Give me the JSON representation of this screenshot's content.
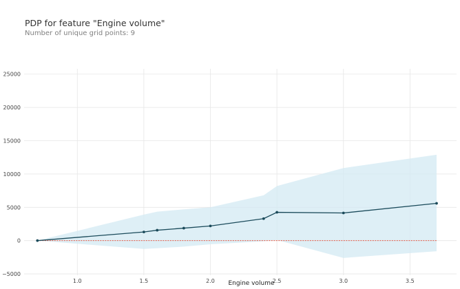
{
  "title": "PDP for feature \"Engine volume\"",
  "subtitle": "Number of unique grid points: 9",
  "colors": {
    "line": "#1a4a5a",
    "band": "#d3eaf3",
    "zero_line": "#e8432a",
    "grid": "#e6e6e6"
  },
  "chart_data": {
    "type": "line",
    "title": "PDP for feature \"Engine volume\"",
    "xlabel": "Engine volume",
    "ylabel": "",
    "xlim": [
      0.6,
      3.85
    ],
    "ylim": [
      -5200,
      25800
    ],
    "xticks": [
      1.0,
      1.5,
      2.0,
      2.5,
      3.0,
      3.5
    ],
    "xtick_labels": [
      "1.0",
      "1.5",
      "2.0",
      "2.5",
      "3.0",
      "3.5"
    ],
    "yticks": [
      -5000,
      0,
      5000,
      10000,
      15000,
      20000,
      25000
    ],
    "ytick_labels": [
      "−5000",
      "0",
      "5000",
      "10000",
      "15000",
      "20000",
      "25000"
    ],
    "x": [
      0.7,
      1.5,
      1.6,
      1.8,
      2.0,
      2.4,
      2.5,
      3.0,
      3.7
    ],
    "pdp": [
      0,
      1300,
      1560,
      1870,
      2200,
      3300,
      4250,
      4150,
      5600
    ],
    "upper": [
      0,
      3900,
      4350,
      4700,
      5000,
      6800,
      8200,
      10900,
      12900
    ],
    "lower": [
      0,
      -1250,
      -1150,
      -900,
      -550,
      -100,
      100,
      -2600,
      -1600
    ],
    "zero_line": 0,
    "grid": true
  }
}
